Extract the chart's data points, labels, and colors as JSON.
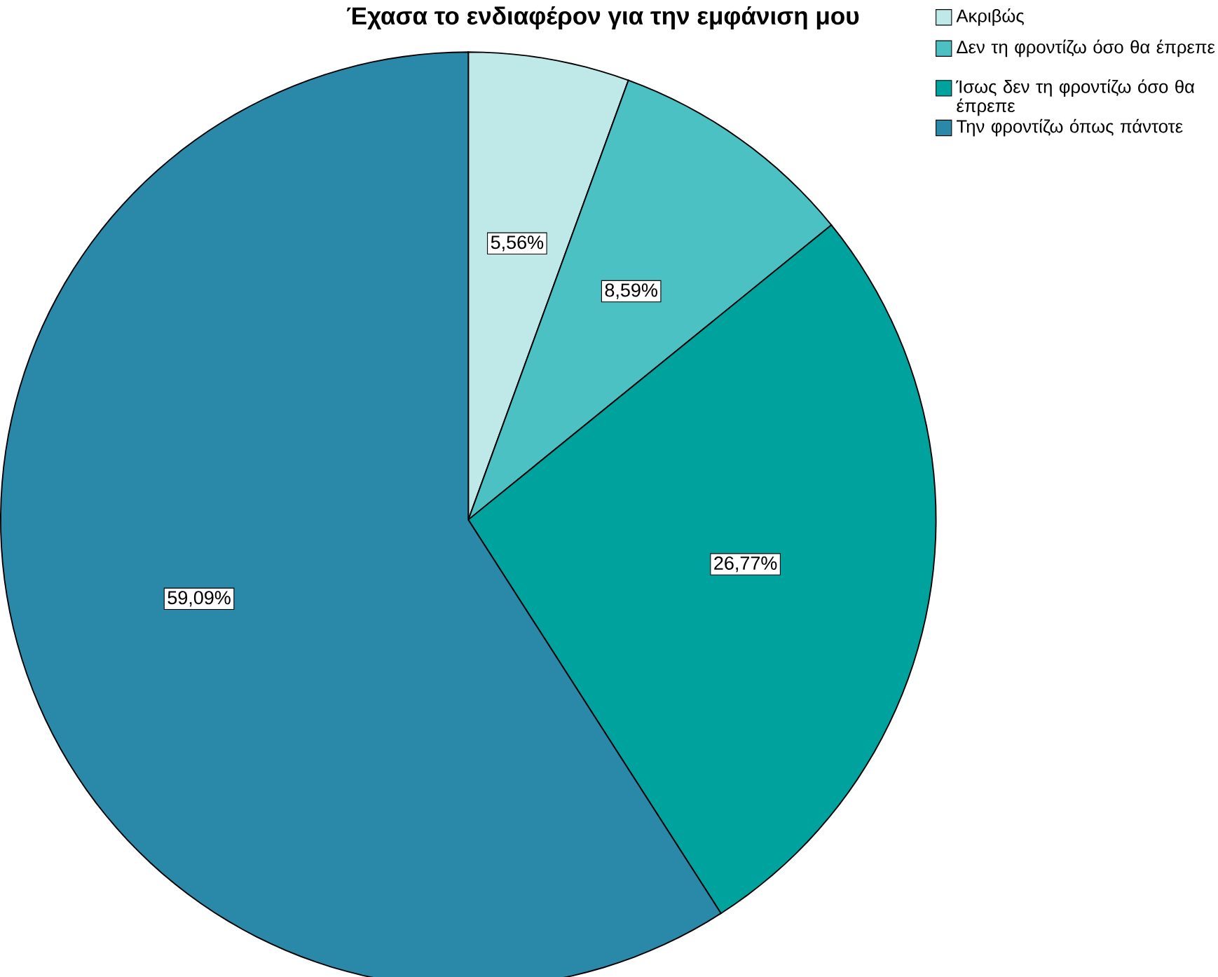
{
  "chart_data": {
    "type": "pie",
    "title": "Έχασα το ενδιαφέρον για την εμφάνιση μου",
    "categories": [
      "Ακριβώς",
      "Δεν τη φροντίζω όσο θα έπρεπε",
      "Ίσως δεν τη φροντίζω όσο θα έπρεπε",
      "Την φροντίζω όπως πάντοτε"
    ],
    "values": [
      5.56,
      8.59,
      26.77,
      59.09
    ],
    "value_labels": [
      "5,56%",
      "8,59%",
      "26,77%",
      "59,09%"
    ],
    "colors": [
      "#bfe8e8",
      "#4bc1c4",
      "#00a29e",
      "#2a88a8"
    ],
    "legend": "top right"
  }
}
